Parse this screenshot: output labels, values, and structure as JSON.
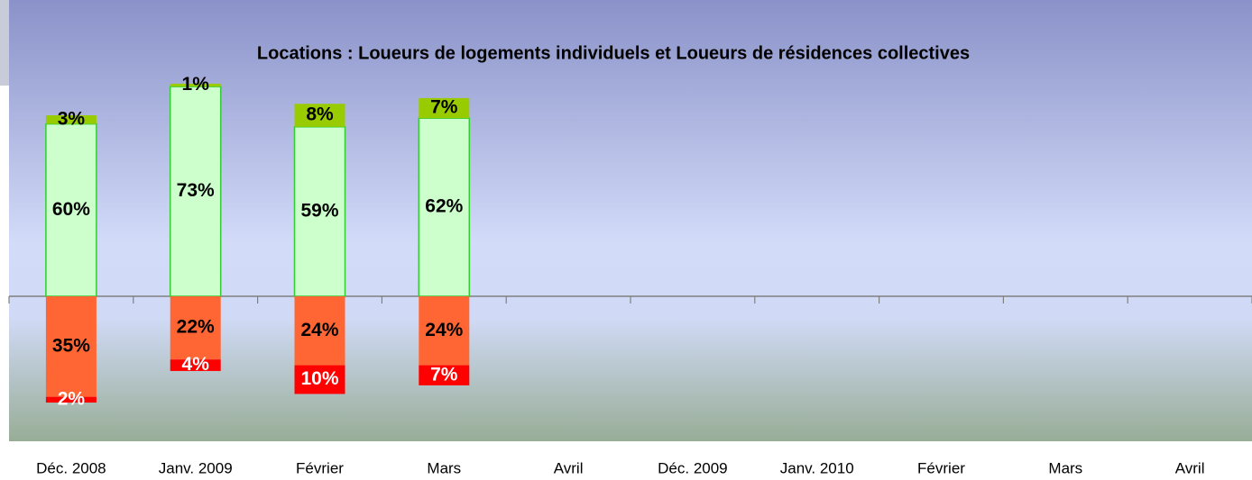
{
  "chart_data": {
    "type": "diverging_stacked_bar",
    "subtitle": "Locations : Loueurs de logements individuels et Loueurs de résidences collectives",
    "categories": [
      "Déc. 2008",
      "Janv. 2009",
      "Février",
      "Mars",
      "Avril",
      "Déc. 2009",
      "Janv. 2010",
      "Février",
      "Mars",
      "Avril"
    ],
    "series": [
      {
        "color": "#ccffcc",
        "label_color": "#000000",
        "side": "up",
        "values": [
          60,
          73,
          59,
          62,
          null,
          null,
          null,
          null,
          null,
          null
        ],
        "value_labels": [
          "60%",
          "73%",
          "59%",
          "62%",
          null,
          null,
          null,
          null,
          null,
          null
        ]
      },
      {
        "color": "#99cc00",
        "label_color": "#000000",
        "side": "up",
        "values": [
          3,
          1,
          8,
          7,
          null,
          null,
          null,
          null,
          null,
          null
        ],
        "value_labels": [
          "3%",
          "1%",
          "8%",
          "7%",
          null,
          null,
          null,
          null,
          null,
          null
        ]
      },
      {
        "color": "#ff6633",
        "label_color": "#000000",
        "side": "down",
        "values": [
          35,
          22,
          24,
          24,
          null,
          null,
          null,
          null,
          null,
          null
        ],
        "value_labels": [
          "35%",
          "22%",
          "24%",
          "24%",
          null,
          null,
          null,
          null,
          null,
          null
        ]
      },
      {
        "color": "#ff0000",
        "label_color": "#ffffff",
        "side": "down",
        "values": [
          2,
          4,
          10,
          7,
          null,
          null,
          null,
          null,
          null,
          null
        ],
        "value_labels": [
          "2%",
          "4%",
          "10%",
          "7%",
          null,
          null,
          null,
          null,
          null,
          null
        ]
      }
    ]
  }
}
